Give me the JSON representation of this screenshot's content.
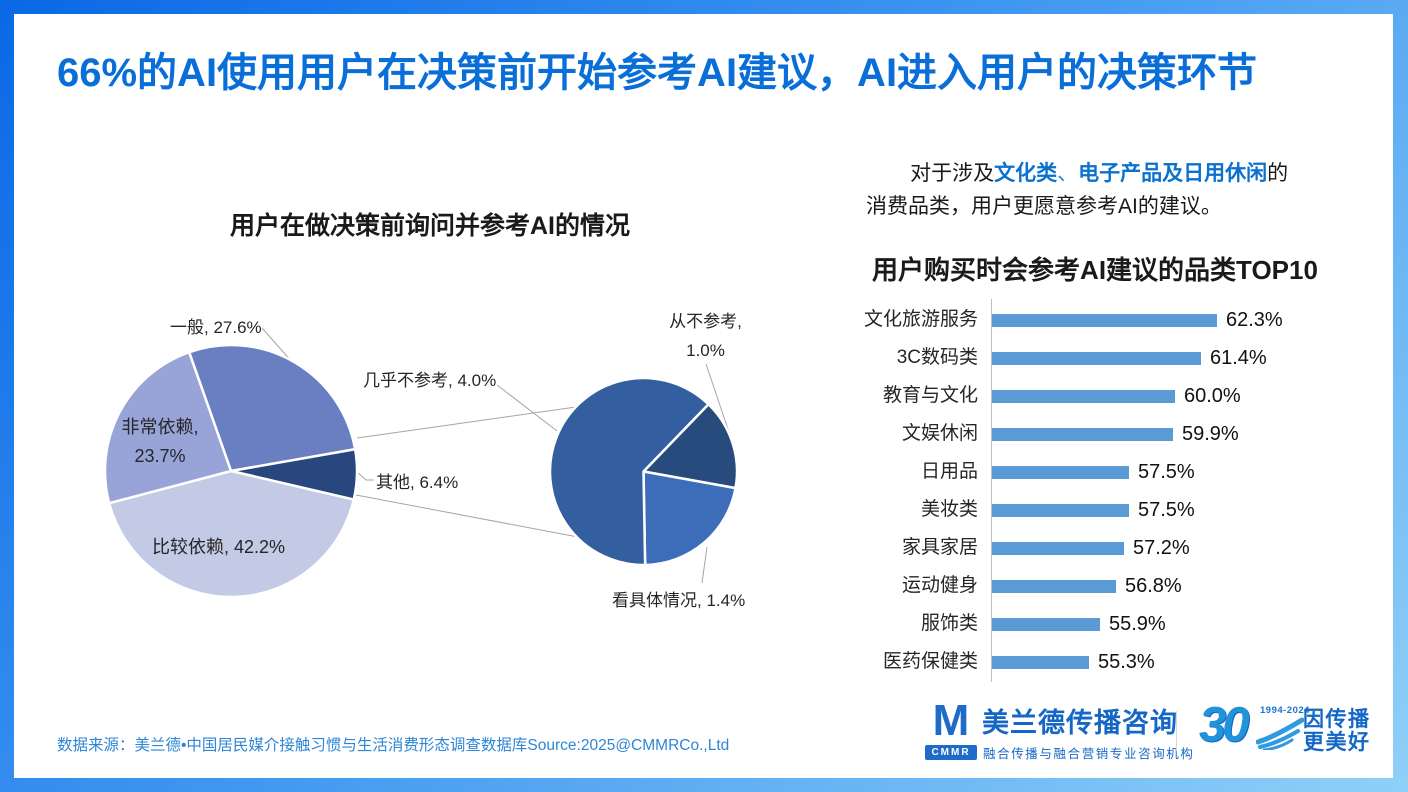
{
  "title": "66%的AI使用用户在决策前开始参考AI建议，AI进入用户的决策环节",
  "intro": {
    "segments": [
      {
        "text": "对于涉及",
        "style": "normal"
      },
      {
        "text": "文化类",
        "style": "highlight"
      },
      {
        "text": "、",
        "style": "highlight-light"
      },
      {
        "text": "电子产品及日用休闲",
        "style": "highlight"
      },
      {
        "text": "的消费品类，用户更愿意参考AI的建议。",
        "style": "normal"
      }
    ]
  },
  "chart_data": [
    {
      "type": "pie",
      "subtype": "pie-of-pie",
      "title": "用户在做决策前询问并参考AI的情况",
      "slices": [
        {
          "label": "一般",
          "value": 27.6,
          "display": "一般, 27.6%",
          "color": "#6A7FC2"
        },
        {
          "label": "其他",
          "value": 6.4,
          "display": "其他, 6.4%",
          "color": "#28477E"
        },
        {
          "label": "比较依赖",
          "value": 42.2,
          "display": "比较依赖, 42.2%",
          "color": "#C3CAE5"
        },
        {
          "label": "非常依赖",
          "value": 23.7,
          "display": "非常依赖,\n23.7%",
          "color": "#98A4D8"
        }
      ],
      "secondary_total_label": "其他",
      "secondary_slices": [
        {
          "label": "从不参考",
          "value": 1.0,
          "display": "从不参考,\n1.0%",
          "color": "#284B7E"
        },
        {
          "label": "看具体情况",
          "value": 1.4,
          "display": "看具体情况, 1.4%",
          "color": "#3D6CB8"
        },
        {
          "label": "几乎不参考",
          "value": 4.0,
          "display": "几乎不参考, 4.0%",
          "color": "#335EA0"
        }
      ]
    },
    {
      "type": "bar",
      "orientation": "horizontal",
      "title": "用户购买时会参考AI建议的品类TOP10",
      "bars": [
        {
          "category": "文化旅游服务",
          "value": 62.3,
          "display": "62.3%"
        },
        {
          "category": "3C数码类",
          "value": 61.4,
          "display": "61.4%"
        },
        {
          "category": "教育与文化",
          "value": 60.0,
          "display": "60.0%"
        },
        {
          "category": "文娱休闲",
          "value": 59.9,
          "display": "59.9%"
        },
        {
          "category": "日用品",
          "value": 57.5,
          "display": "57.5%"
        },
        {
          "category": "美妆类",
          "value": 57.5,
          "display": "57.5%"
        },
        {
          "category": "家具家居",
          "value": 57.2,
          "display": "57.2%"
        },
        {
          "category": "运动健身",
          "value": 56.8,
          "display": "56.8%"
        },
        {
          "category": "服饰类",
          "value": 55.9,
          "display": "55.9%"
        },
        {
          "category": "医药保健类",
          "value": 55.3,
          "display": "55.3%"
        }
      ],
      "axis_min": 50,
      "grid": false,
      "legend": false,
      "bar_color": "#5B9BD5"
    }
  ],
  "source": "数据来源：美兰德•中国居民媒介接触习惯与生活消费形态调查数据库Source:2025@CMMRCo.,Ltd",
  "footer": {
    "logo_m": "M",
    "cmmr_logo_text": "CMMR",
    "company_name": "美兰德传播咨询",
    "company_tagline": "融合传播与融合营销专业咨询机构",
    "anniversary_number": "30",
    "anniversary_years": "1994-2024",
    "slogan_line1": "因传播",
    "slogan_line2": "更美好"
  },
  "colors": {
    "frame_gradient_start": "#0A68E6",
    "frame_gradient_end": "#8FD0F8",
    "title_blue": "#0A6ED8",
    "highlight_blue": "#0A72CE",
    "bar_blue": "#5B9BD5",
    "source_blue": "#2E86D6",
    "logo_blue": "#1567C6",
    "connector_gray": "#A6A6A6"
  }
}
